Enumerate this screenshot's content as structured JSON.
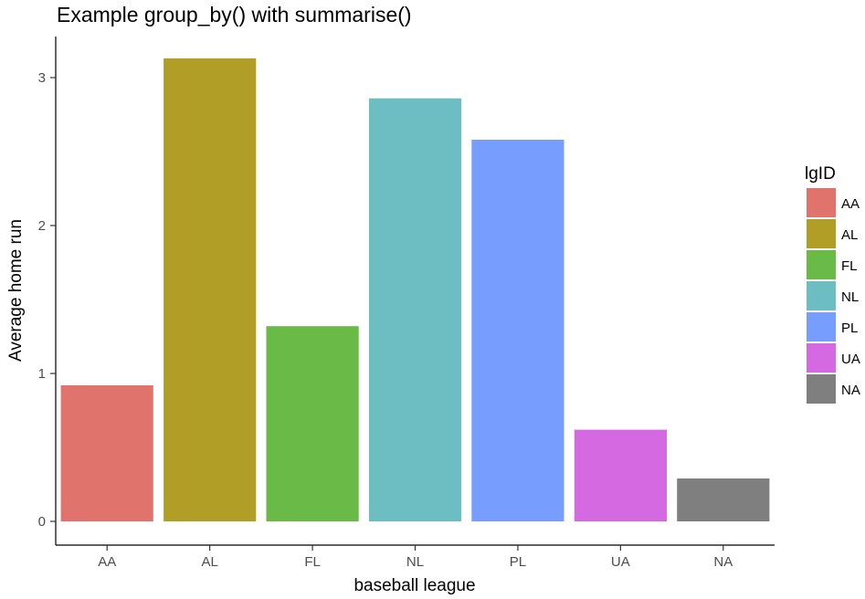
{
  "chart_data": {
    "type": "bar",
    "title": "Example group_by() with summarise()",
    "xlabel": "baseball league",
    "ylabel": "Average home run",
    "categories": [
      "AA",
      "AL",
      "FL",
      "NL",
      "PL",
      "UA",
      "NA"
    ],
    "values": [
      0.92,
      3.13,
      1.32,
      2.86,
      2.58,
      0.62,
      0.29
    ],
    "colors": [
      "#E0746C",
      "#B09E26",
      "#69BA47",
      "#6CBEC3",
      "#779DFE",
      "#D569E1",
      "#7F7F7F"
    ],
    "ylim": [
      0,
      3.2
    ],
    "yticks": [
      0,
      1,
      2,
      3
    ],
    "grid": false,
    "legend": {
      "title": "lgID",
      "position": "right",
      "entries": [
        "AA",
        "AL",
        "FL",
        "NL",
        "PL",
        "UA",
        "NA"
      ]
    }
  }
}
